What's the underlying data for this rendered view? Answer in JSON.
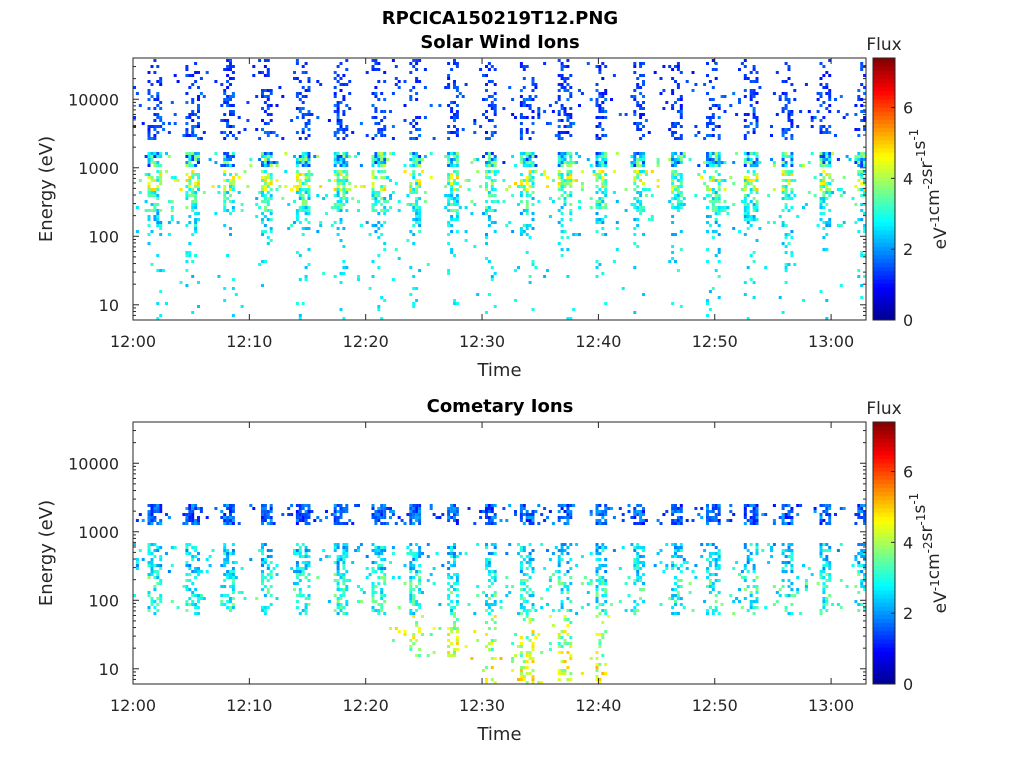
{
  "figure_title": "RPCICA150219T12.PNG",
  "colormap": [
    "#00008f",
    "#0000ff",
    "#0080ff",
    "#00ffff",
    "#80ff80",
    "#ffff00",
    "#ff8000",
    "#ff0000",
    "#800000"
  ],
  "chart_data": [
    {
      "type": "heatmap",
      "title": "Solar Wind Ions",
      "xlabel": "Time",
      "ylabel": "Energy (eV)",
      "y_scale": "log",
      "ylim": [
        6,
        40000
      ],
      "xlim": [
        "12:00",
        "13:03"
      ],
      "x_ticks": [
        "12:00",
        "12:10",
        "12:20",
        "12:30",
        "12:40",
        "12:50",
        "13:00"
      ],
      "y_ticks": [
        10,
        100,
        1000,
        10000
      ],
      "y_tick_labels": [
        "10",
        "100",
        "1000",
        "10000"
      ],
      "colorbar": {
        "title": "Flux",
        "range": [
          0,
          7.4
        ],
        "ticks": [
          0,
          2,
          4,
          6
        ],
        "tick_labels": [
          "0",
          "2",
          "4",
          "6"
        ],
        "unit_base": "eV",
        "unit_parts": [
          {
            "base": "eV",
            "exp": "-1"
          },
          {
            "base": "cm",
            "exp": "-2"
          },
          {
            "base": "sr",
            "exp": "-1"
          },
          {
            "base": "s",
            "exp": "-1"
          }
        ]
      },
      "sweep_period_min": 3.2,
      "sweep_start_min": 1.2,
      "bands": [
        {
          "emin": 15000,
          "emax": 40000,
          "fmin": 1.0,
          "fmax": 1.6,
          "density": 0.25
        },
        {
          "emin": 2500,
          "emax": 15000,
          "fmin": 1.0,
          "fmax": 1.8,
          "density": 0.35
        },
        {
          "emin": 1100,
          "emax": 1800,
          "fmin": 1.2,
          "fmax": 4.2,
          "density": 0.85
        },
        {
          "emin": 450,
          "emax": 900,
          "fmin": 2.5,
          "fmax": 5.0,
          "density": 0.6
        },
        {
          "emin": 220,
          "emax": 450,
          "fmin": 2.2,
          "fmax": 3.8,
          "density": 0.55
        },
        {
          "emin": 100,
          "emax": 220,
          "fmin": 2.0,
          "fmax": 3.2,
          "density": 0.25
        },
        {
          "emin": 15,
          "emax": 100,
          "fmin": 2.2,
          "fmax": 3.2,
          "density": 0.08
        },
        {
          "emin": 6,
          "emax": 15,
          "fmin": 2.3,
          "fmax": 3.0,
          "density": 0.05
        }
      ]
    },
    {
      "type": "heatmap",
      "title": "Cometary Ions",
      "xlabel": "Time",
      "ylabel": "Energy (eV)",
      "y_scale": "log",
      "ylim": [
        6,
        40000
      ],
      "xlim": [
        "12:00",
        "13:03"
      ],
      "x_ticks": [
        "12:00",
        "12:10",
        "12:20",
        "12:30",
        "12:40",
        "12:50",
        "13:00"
      ],
      "y_ticks": [
        10,
        100,
        1000,
        10000
      ],
      "y_tick_labels": [
        "10",
        "100",
        "1000",
        "10000"
      ],
      "colorbar": {
        "title": "Flux",
        "range": [
          0,
          7.4
        ],
        "ticks": [
          0,
          2,
          4,
          6
        ],
        "tick_labels": [
          "0",
          "2",
          "4",
          "6"
        ],
        "unit_base": "eV",
        "unit_parts": [
          {
            "base": "eV",
            "exp": "-1"
          },
          {
            "base": "cm",
            "exp": "-2"
          },
          {
            "base": "sr",
            "exp": "-1"
          },
          {
            "base": "s",
            "exp": "-1"
          }
        ]
      },
      "sweep_period_min": 3.2,
      "sweep_start_min": 1.2,
      "bands": [
        {
          "emin": 1300,
          "emax": 2600,
          "fmin": 1.0,
          "fmax": 2.2,
          "density": 0.75
        },
        {
          "emin": 250,
          "emax": 700,
          "fmin": 1.8,
          "fmax": 3.2,
          "density": 0.5
        },
        {
          "emin": 60,
          "emax": 250,
          "fmin": 2.2,
          "fmax": 3.8,
          "density": 0.4
        },
        {
          "emin": 15,
          "emax": 60,
          "fmin": 3.0,
          "fmax": 5.0,
          "density": 0.3,
          "from_min": 22,
          "to_min": 41
        },
        {
          "emin": 6,
          "emax": 15,
          "fmin": 3.5,
          "fmax": 5.2,
          "density": 0.3,
          "from_min": 29,
          "to_min": 41
        }
      ]
    }
  ]
}
